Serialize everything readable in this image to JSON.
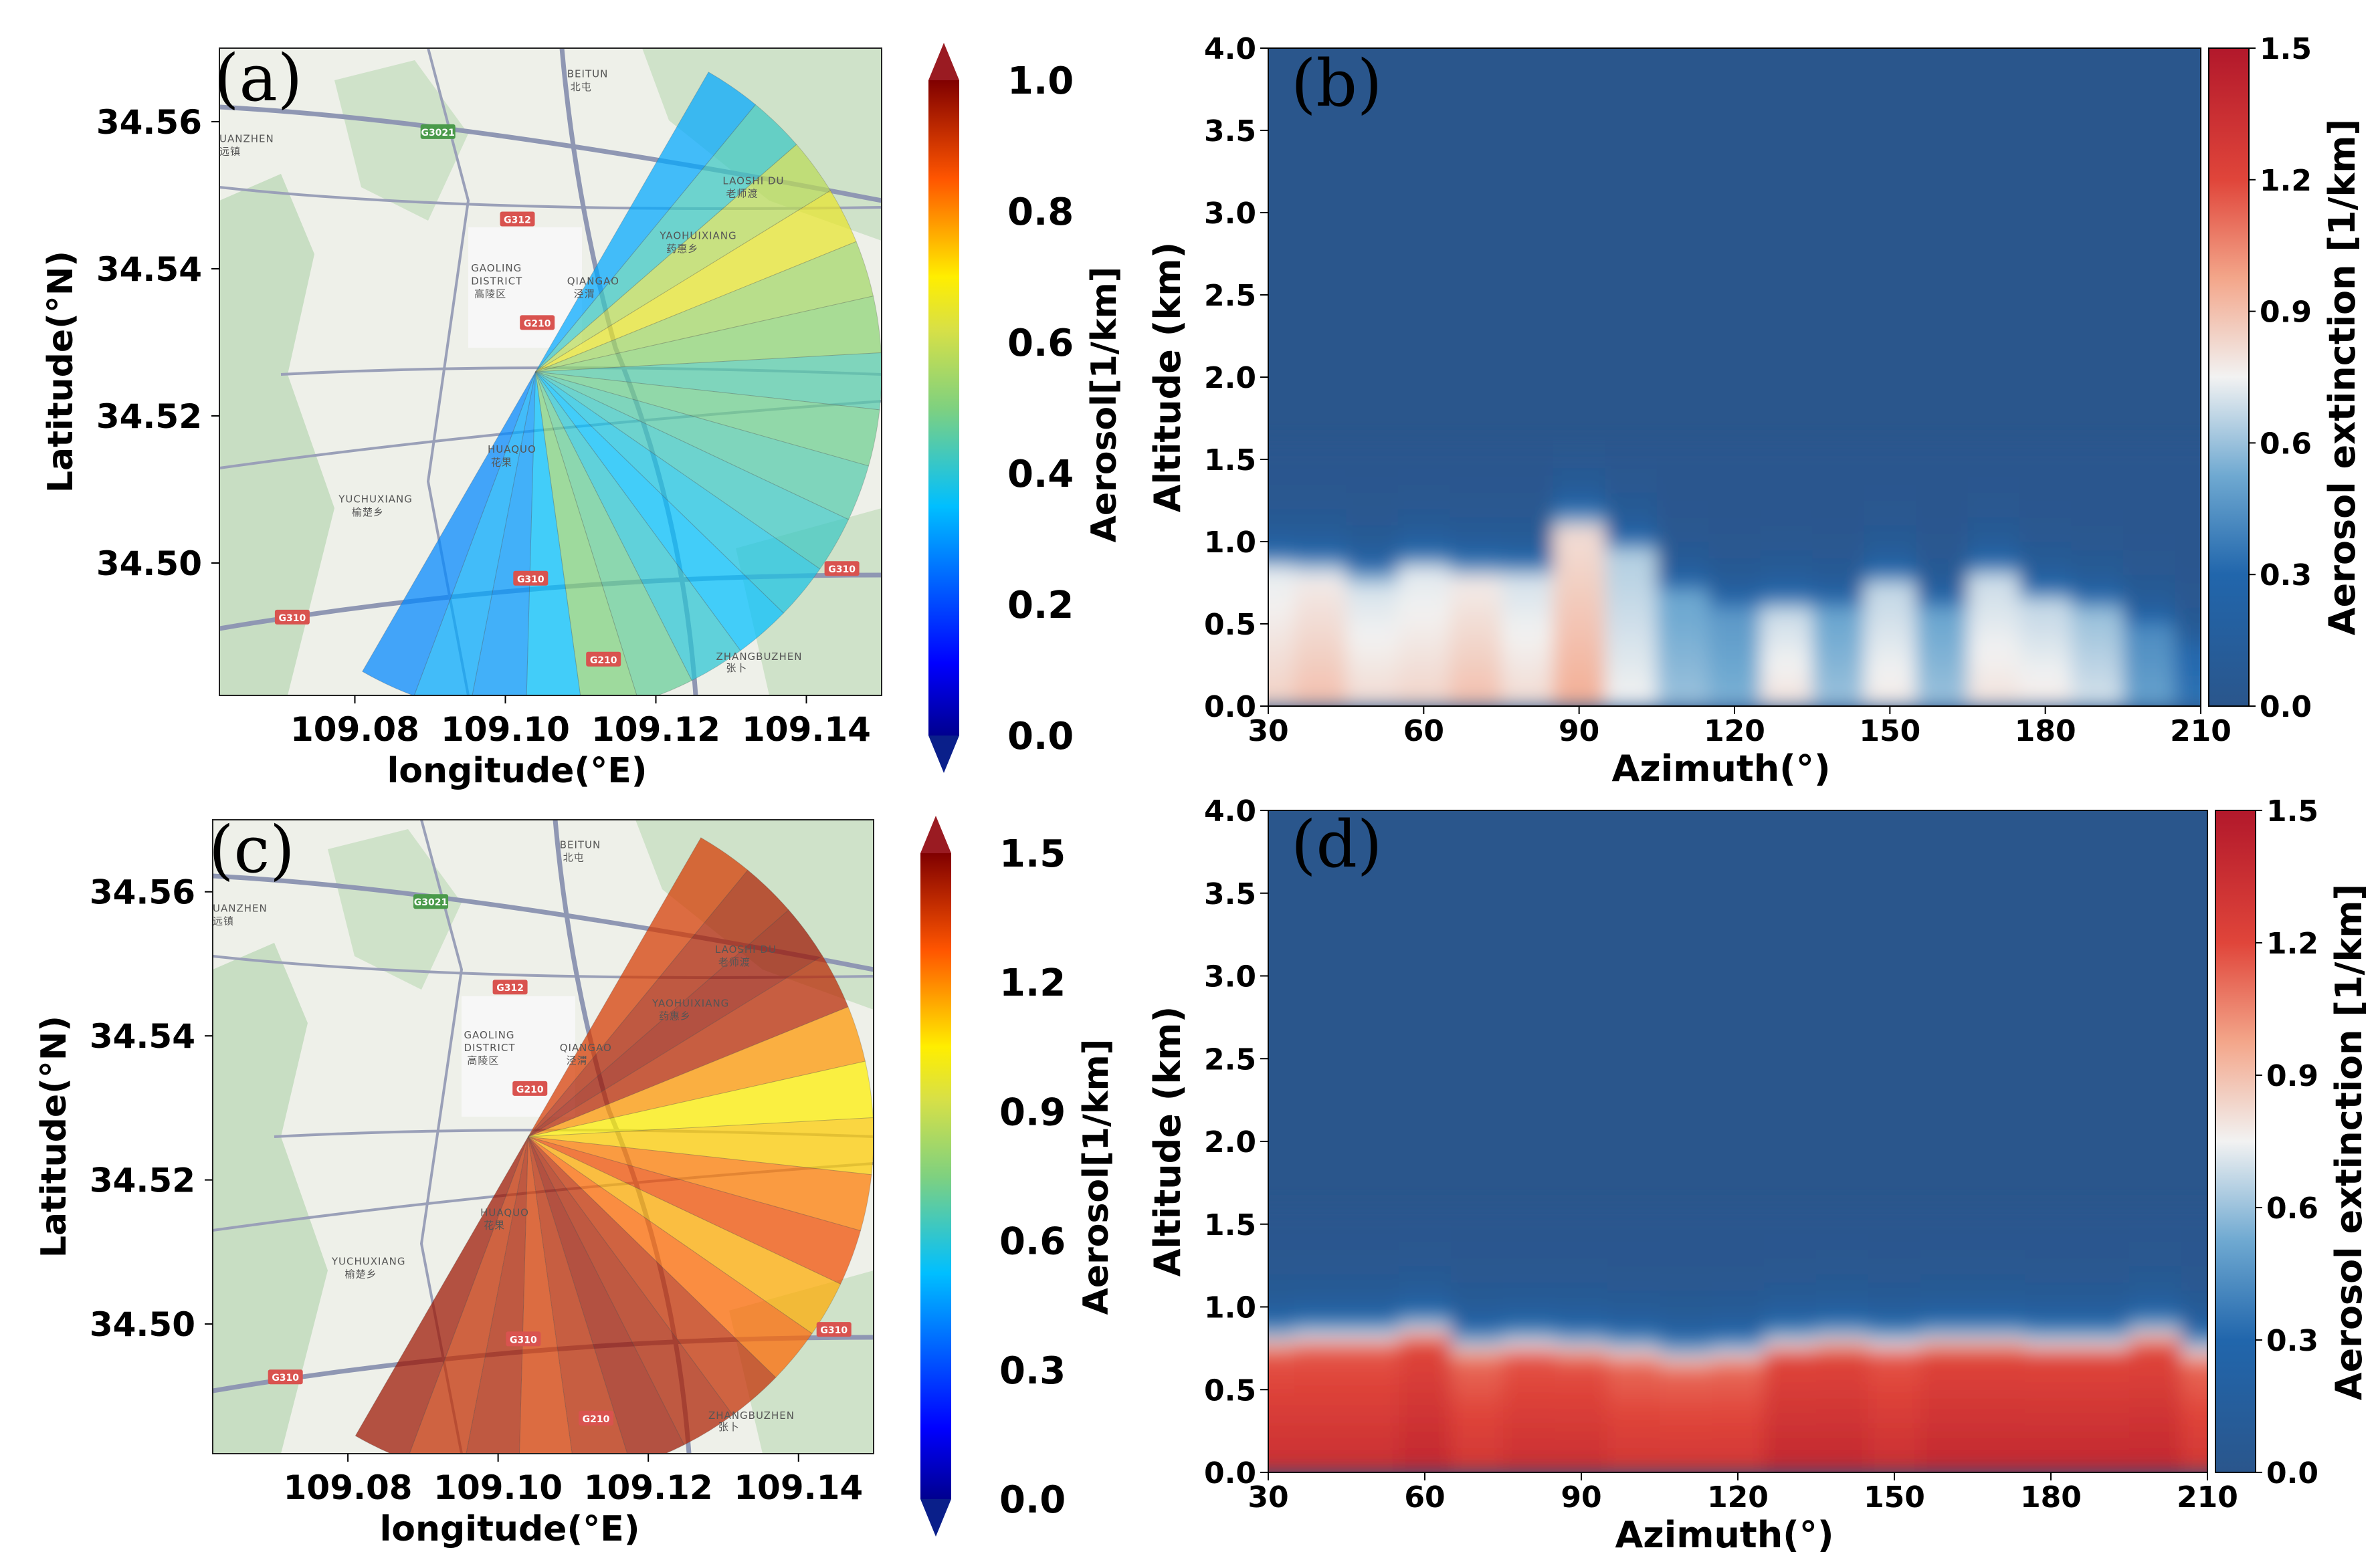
{
  "chart_data": [
    {
      "panel": "(a)",
      "type": "heatmap",
      "description_type": "polar-sector-map",
      "xlabel": "longitude(°E)",
      "ylabel": "Latitude(°N)",
      "xticks": [
        "109.08",
        "109.10",
        "109.12",
        "109.14"
      ],
      "yticks": [
        "34.56",
        "34.54",
        "34.52",
        "34.50"
      ],
      "xlim": [
        109.062,
        109.15
      ],
      "ylim": [
        34.482,
        34.57
      ],
      "origin": [
        109.104,
        34.526
      ],
      "sector_azimuth_range": [
        30,
        210
      ],
      "sector_values": [
        0.32,
        0.42,
        0.58,
        0.65,
        0.55,
        0.52,
        0.45,
        0.48,
        0.45,
        0.42,
        0.38,
        0.35,
        0.4,
        0.47,
        0.5,
        0.35,
        0.3,
        0.32,
        0.28
      ],
      "colorbar": {
        "label": "Aerosol[1/km]",
        "ticks": [
          "0.0",
          "0.2",
          "0.4",
          "0.6",
          "0.8",
          "1.0"
        ],
        "range": [
          0,
          1.0
        ]
      },
      "map_labels": [
        "BEITUN",
        "北屯",
        "LAOSHI DU",
        "老师渡",
        "YAOHUIXIANG",
        "药惠乡",
        "GAOLING",
        "DISTRICT",
        "高陵区",
        "QIANGAO",
        "泾渭",
        "HUAQUO",
        "花果",
        "YUCHUXIANG",
        "榆楚乡",
        "ZHANGBUZHEN",
        "张卜",
        "UANZHEN",
        "远镇"
      ],
      "shields": [
        "G3021",
        "G312",
        "G210",
        "G310",
        "G310",
        "G310",
        "G210"
      ]
    },
    {
      "panel": "(b)",
      "type": "heatmap",
      "xlabel": "Azimuth(°)",
      "ylabel": "Altitude (km)",
      "xticks": [
        "30",
        "60",
        "90",
        "120",
        "150",
        "180",
        "210"
      ],
      "yticks": [
        "0.0",
        "0.5",
        "1.0",
        "1.5",
        "2.0",
        "2.5",
        "3.0",
        "3.5",
        "4.0"
      ],
      "xlim": [
        30,
        210
      ],
      "ylim": [
        0,
        4.0
      ],
      "azimuth": [
        30,
        40,
        50,
        60,
        70,
        80,
        90,
        100,
        110,
        120,
        130,
        140,
        150,
        160,
        170,
        180,
        190,
        200,
        210
      ],
      "near_surface_extinction": [
        0.85,
        0.9,
        0.82,
        0.84,
        0.9,
        0.82,
        0.95,
        0.75,
        0.6,
        0.55,
        0.8,
        0.6,
        0.78,
        0.6,
        0.8,
        0.78,
        0.7,
        0.5,
        0.35
      ],
      "boundary_layer_top_km": [
        0.8,
        0.78,
        0.72,
        0.8,
        0.75,
        0.75,
        1.05,
        0.9,
        0.65,
        0.55,
        0.55,
        0.55,
        0.7,
        0.55,
        0.75,
        0.6,
        0.55,
        0.45,
        0.3
      ],
      "colorbar": {
        "label": "Aerosol extinction [1/km]",
        "ticks": [
          "0.0",
          "0.3",
          "0.6",
          "0.9",
          "1.2",
          "1.5"
        ],
        "range": [
          0,
          1.5
        ]
      }
    },
    {
      "panel": "(c)",
      "type": "heatmap",
      "description_type": "polar-sector-map",
      "xlabel": "longitude(°E)",
      "ylabel": "Latitude(°N)",
      "xticks": [
        "109.08",
        "109.10",
        "109.12",
        "109.14"
      ],
      "yticks": [
        "34.56",
        "34.54",
        "34.52",
        "34.50"
      ],
      "xlim": [
        109.062,
        109.15
      ],
      "ylim": [
        34.482,
        34.57
      ],
      "origin": [
        109.104,
        34.526
      ],
      "sector_azimuth_range": [
        30,
        210
      ],
      "sector_values": [
        1.35,
        1.42,
        1.45,
        1.4,
        1.18,
        1.05,
        1.1,
        1.22,
        1.3,
        1.15,
        1.25,
        1.38,
        1.42,
        1.45,
        1.4,
        1.35,
        1.42,
        1.38,
        1.45
      ],
      "colorbar": {
        "label": "Aerosol[1/km]",
        "ticks": [
          "0.0",
          "0.3",
          "0.6",
          "0.9",
          "1.2",
          "1.5"
        ],
        "range": [
          0,
          1.5
        ]
      },
      "map_labels": [
        "BEITUN",
        "北屯",
        "LAOSHI DU",
        "老师渡",
        "YAOHUIXIANG",
        "药惠乡",
        "GAOLING",
        "DISTRICT",
        "高陵区",
        "QIANGAO",
        "泾渭",
        "HUAQUO",
        "花果",
        "YUCHUXIANG",
        "榆楚乡",
        "ZHANGBUZHEN",
        "张卜",
        "UANZHEN",
        "远镇"
      ],
      "shields": [
        "G3021",
        "G312",
        "G210",
        "G310",
        "G310",
        "G310",
        "G210"
      ]
    },
    {
      "panel": "(d)",
      "type": "heatmap",
      "xlabel": "Azimuth(°)",
      "ylabel": "Altitude (km)",
      "xticks": [
        "30",
        "60",
        "90",
        "120",
        "150",
        "180",
        "210"
      ],
      "yticks": [
        "0.0",
        "0.5",
        "1.0",
        "1.5",
        "2.0",
        "2.5",
        "3.0",
        "3.5",
        "4.0"
      ],
      "xlim": [
        30,
        210
      ],
      "ylim": [
        0,
        4.0
      ],
      "azimuth": [
        30,
        40,
        50,
        60,
        70,
        80,
        90,
        100,
        110,
        120,
        130,
        140,
        150,
        160,
        170,
        180,
        190,
        200,
        210
      ],
      "near_surface_extinction": [
        1.35,
        1.35,
        1.35,
        1.4,
        1.3,
        1.35,
        1.35,
        1.3,
        1.3,
        1.3,
        1.4,
        1.4,
        1.35,
        1.4,
        1.4,
        1.4,
        1.4,
        1.4,
        1.3
      ],
      "boundary_layer_top_km": [
        0.72,
        0.74,
        0.74,
        0.78,
        0.68,
        0.7,
        0.68,
        0.66,
        0.62,
        0.64,
        0.7,
        0.72,
        0.7,
        0.72,
        0.72,
        0.7,
        0.7,
        0.76,
        0.66
      ],
      "colorbar": {
        "label": "Aerosol extinction [1/km]",
        "ticks": [
          "0.0",
          "0.3",
          "0.6",
          "0.9",
          "1.2",
          "1.5"
        ],
        "range": [
          0,
          1.5
        ]
      }
    }
  ],
  "colors": {
    "map_land": "#eef0e9",
    "map_green": "#c5dcc0",
    "map_road": "#8f97b3",
    "shield_red": "#d9534f",
    "shield_green": "#4a9a4a"
  }
}
